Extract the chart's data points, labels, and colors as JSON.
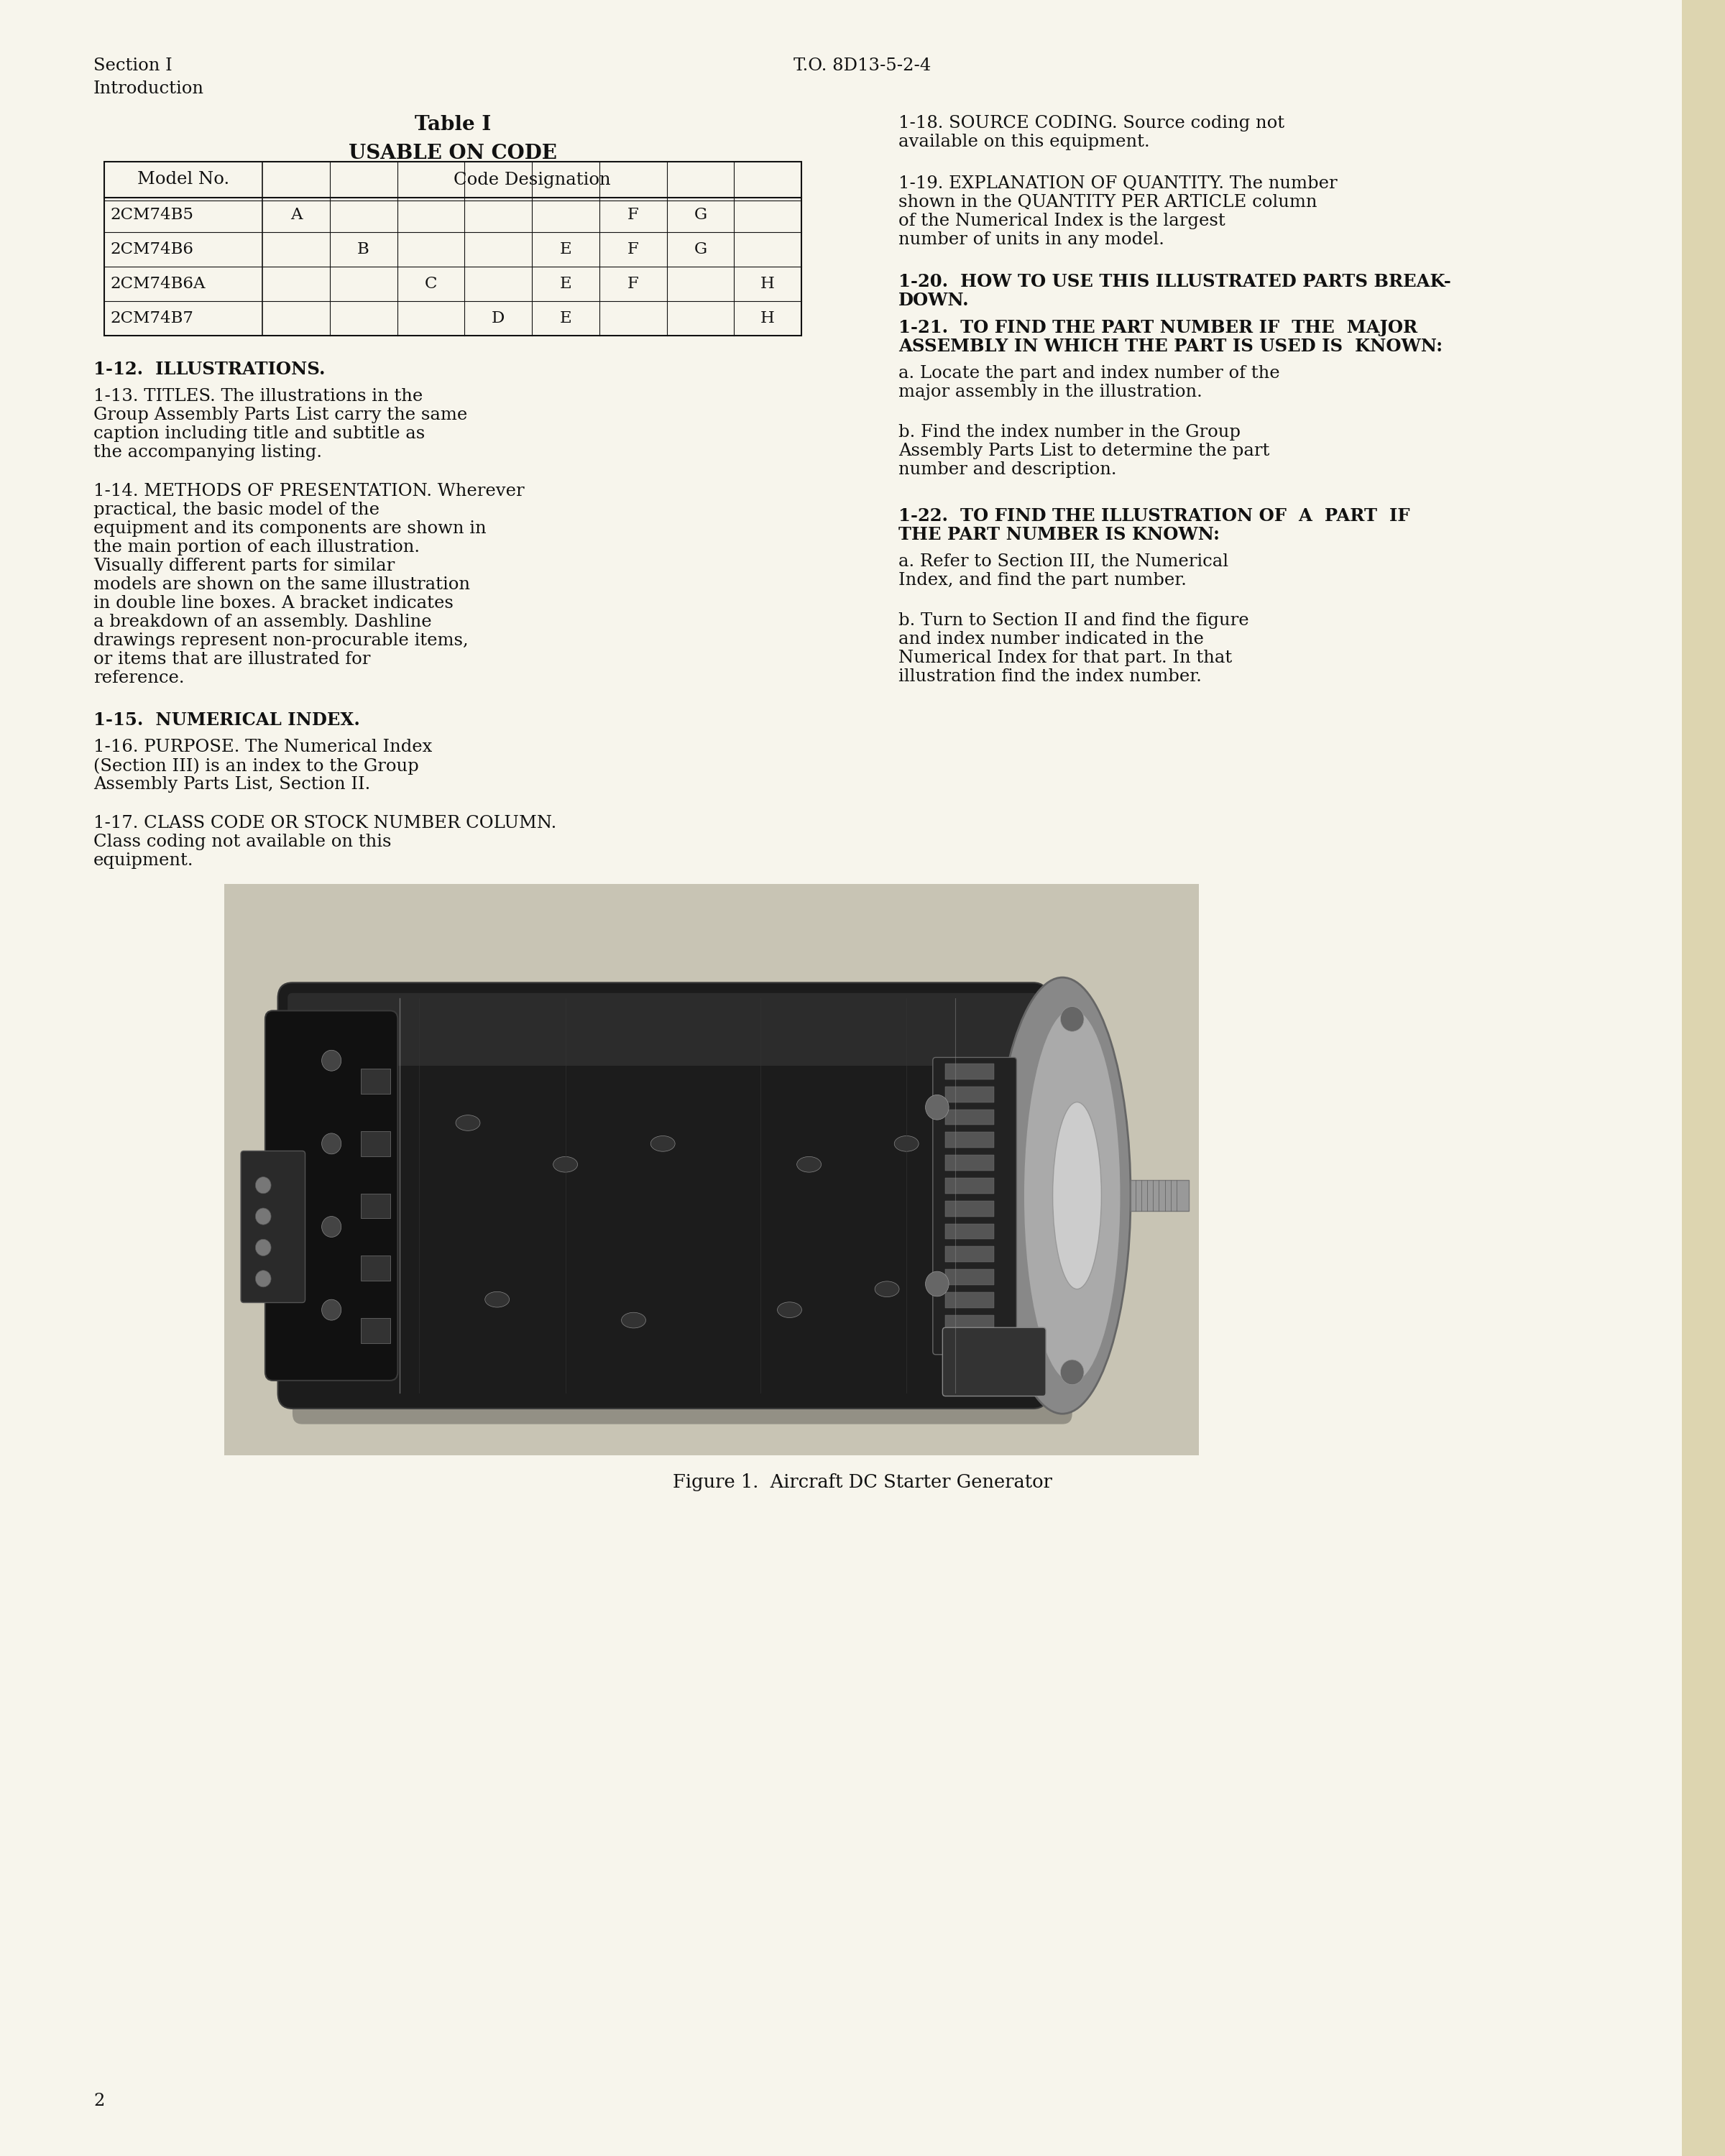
{
  "bg_color": "#f0ede0",
  "text_color": "#111111",
  "header_left_line1": "Section I",
  "header_left_line2": "Introduction",
  "header_center": "T.O. 8D13-5-2-4",
  "table_title": "Table I",
  "table_subtitle": "USABLE ON CODE",
  "table_rows": [
    {
      "model": "2CM74B5",
      "codes": [
        "A",
        "",
        "",
        "",
        "",
        "F",
        "G",
        ""
      ]
    },
    {
      "model": "2CM74B6",
      "codes": [
        "",
        "B",
        "",
        "",
        "E",
        "F",
        "G",
        ""
      ]
    },
    {
      "model": "2CM74B6A",
      "codes": [
        "",
        "",
        "C",
        "",
        "E",
        "F",
        "",
        "H"
      ]
    },
    {
      "model": "2CM74B7",
      "codes": [
        "",
        "",
        "",
        "D",
        "E",
        "",
        "",
        "H"
      ]
    }
  ],
  "figure_caption": "Figure 1.  Aircraft DC Starter Generator",
  "page_number": "2",
  "page_bg": "#f7f5ec",
  "margin_color": "#e8e2cc"
}
